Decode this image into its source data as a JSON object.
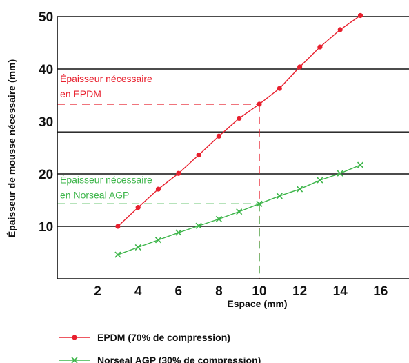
{
  "chart_data": {
    "type": "line",
    "xlabel": "Espace (mm)",
    "ylabel": "Épaisseur de mousse nécessaire (mm)",
    "x_ticks": [
      2,
      4,
      6,
      8,
      10,
      12,
      14,
      16
    ],
    "y_ticks": [
      10,
      20,
      30,
      40,
      50
    ],
    "y_gridlines": [
      10,
      20,
      28,
      40,
      50
    ],
    "xlim": [
      0,
      17
    ],
    "ylim": [
      0,
      50
    ],
    "grid": "horizontal",
    "legend_placement": "bottom-left",
    "series": [
      {
        "name": "EPDM (70% de compression)",
        "color": "#e8202e",
        "marker": "dot",
        "x": [
          3,
          4,
          5,
          6,
          7,
          8,
          9,
          10,
          11,
          12,
          13,
          14,
          15
        ],
        "y": [
          10,
          13.6,
          17.1,
          20.1,
          23.6,
          27.2,
          30.6,
          33.3,
          36.3,
          40.4,
          44.2,
          47.5,
          50.2
        ]
      },
      {
        "name": "Norseal AGP (30% de compression)",
        "color": "#3db54a",
        "marker": "x",
        "x": [
          3,
          4,
          5,
          6,
          7,
          8,
          9,
          10,
          11,
          12,
          13,
          14,
          15
        ],
        "y": [
          4.6,
          6.0,
          7.4,
          8.8,
          10.1,
          11.4,
          12.8,
          14.3,
          15.8,
          17.1,
          18.8,
          20.1,
          21.7
        ]
      }
    ],
    "annotations": [
      {
        "lines": [
          "Épaisseur nécessaire",
          "en EPDM"
        ],
        "color": "#e8202e",
        "x": 10,
        "y": 33.3
      },
      {
        "lines": [
          "Épaisseur nécessaire",
          "en Norseal AGP"
        ],
        "color": "#3db54a",
        "x": 10,
        "y": 14.3
      }
    ],
    "axis_color": "#111111"
  }
}
